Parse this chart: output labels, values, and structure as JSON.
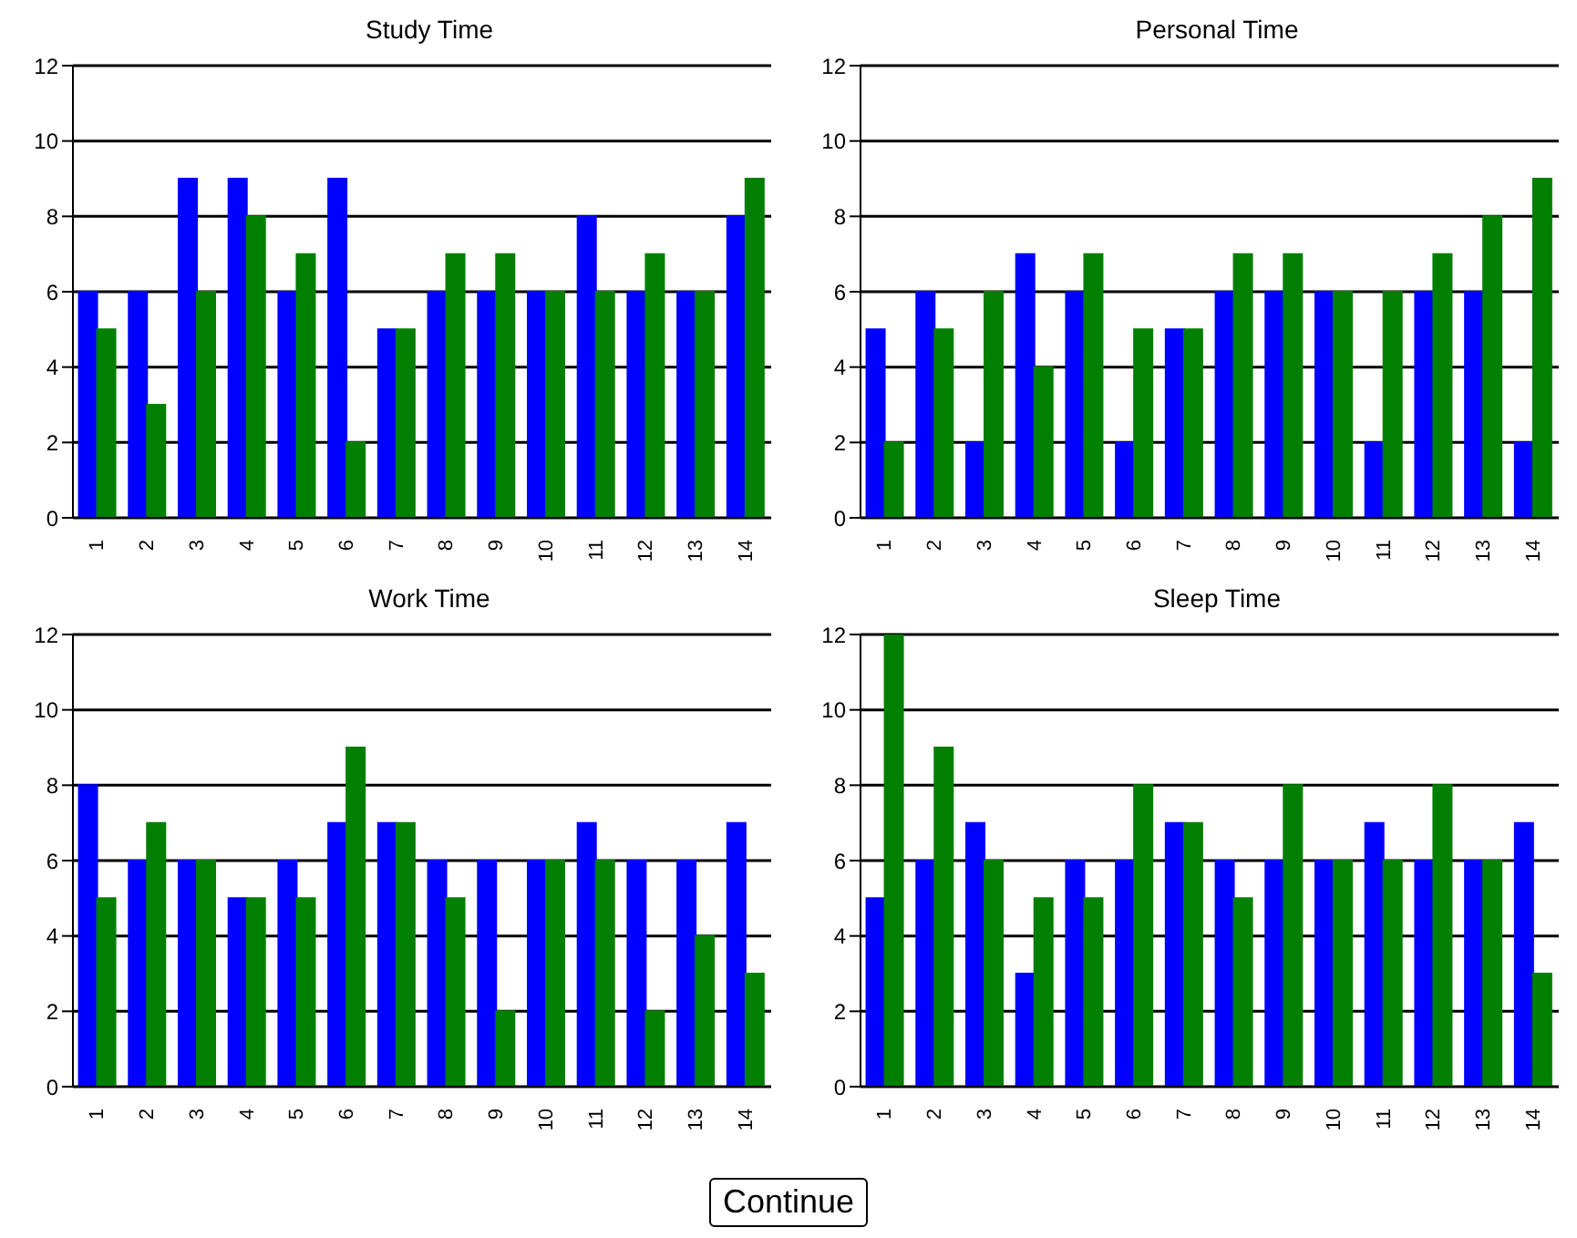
{
  "chart_data": [
    {
      "type": "bar",
      "title": "Study Time",
      "categories": [
        "1",
        "2",
        "3",
        "4",
        "5",
        "6",
        "7",
        "8",
        "9",
        "10",
        "11",
        "12",
        "13",
        "14"
      ],
      "ylim": [
        0,
        12
      ],
      "yticks": [
        0,
        2,
        4,
        6,
        8,
        10,
        12
      ],
      "grid": "y",
      "series": [
        {
          "color": "#0000ff",
          "values": [
            6,
            6,
            9,
            9,
            6,
            9,
            5,
            6,
            6,
            6,
            8,
            6,
            6,
            8
          ]
        },
        {
          "color": "#007f00",
          "values": [
            5,
            3,
            6,
            8,
            7,
            2,
            5,
            7,
            7,
            6,
            6,
            7,
            6,
            9
          ]
        }
      ]
    },
    {
      "type": "bar",
      "title": "Personal Time",
      "categories": [
        "1",
        "2",
        "3",
        "4",
        "5",
        "6",
        "7",
        "8",
        "9",
        "10",
        "11",
        "12",
        "13",
        "14"
      ],
      "ylim": [
        0,
        12
      ],
      "yticks": [
        0,
        2,
        4,
        6,
        8,
        10,
        12
      ],
      "grid": "y",
      "series": [
        {
          "color": "#0000ff",
          "values": [
            5,
            6,
            2,
            7,
            6,
            2,
            5,
            6,
            6,
            6,
            2,
            6,
            6,
            2
          ]
        },
        {
          "color": "#007f00",
          "values": [
            2,
            5,
            6,
            4,
            7,
            5,
            5,
            7,
            7,
            6,
            6,
            7,
            8,
            9
          ]
        }
      ]
    },
    {
      "type": "bar",
      "title": "Work Time",
      "categories": [
        "1",
        "2",
        "3",
        "4",
        "5",
        "6",
        "7",
        "8",
        "9",
        "10",
        "11",
        "12",
        "13",
        "14"
      ],
      "ylim": [
        0,
        12
      ],
      "yticks": [
        0,
        2,
        4,
        6,
        8,
        10,
        12
      ],
      "grid": "y",
      "series": [
        {
          "color": "#0000ff",
          "values": [
            8,
            6,
            6,
            5,
            6,
            7,
            7,
            6,
            6,
            6,
            7,
            6,
            6,
            7
          ]
        },
        {
          "color": "#007f00",
          "values": [
            5,
            7,
            6,
            5,
            5,
            9,
            7,
            5,
            2,
            6,
            6,
            2,
            4,
            3
          ]
        }
      ]
    },
    {
      "type": "bar",
      "title": "Sleep Time",
      "categories": [
        "1",
        "2",
        "3",
        "4",
        "5",
        "6",
        "7",
        "8",
        "9",
        "10",
        "11",
        "12",
        "13",
        "14"
      ],
      "ylim": [
        0,
        12
      ],
      "yticks": [
        0,
        2,
        4,
        6,
        8,
        10,
        12
      ],
      "grid": "y",
      "series": [
        {
          "color": "#0000ff",
          "values": [
            5,
            6,
            7,
            3,
            6,
            6,
            7,
            6,
            6,
            6,
            7,
            6,
            6,
            7
          ]
        },
        {
          "color": "#007f00",
          "values": [
            12,
            9,
            6,
            5,
            5,
            8,
            7,
            5,
            8,
            6,
            6,
            8,
            6,
            3
          ]
        }
      ]
    },
    {
      "type": "other",
      "annotations": [
        "Continue"
      ]
    }
  ]
}
